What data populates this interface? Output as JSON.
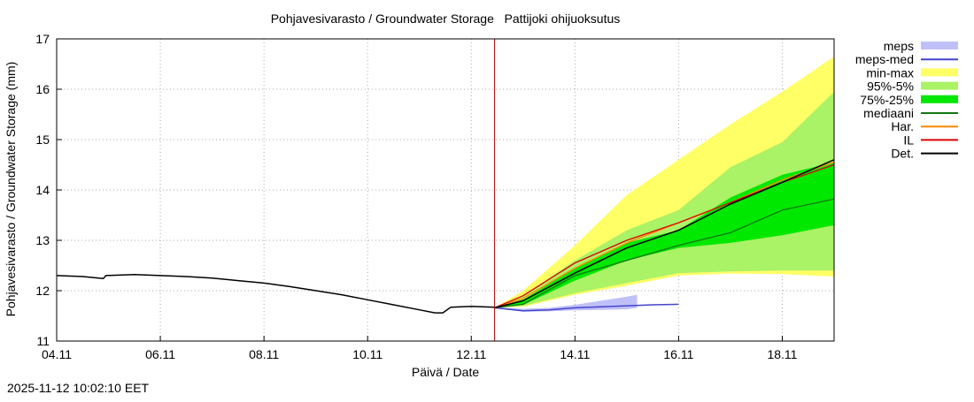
{
  "chart_data": {
    "type": "area",
    "title": "Pohjavesivarasto / Groundwater Storage   Pattijoki ohijuoksutus",
    "xlabel": "Päivä / Date",
    "ylabel": "Pohjavesivarasto / Groundwater Storage (mm)",
    "xlim": [
      0,
      15
    ],
    "ylim": [
      11,
      17
    ],
    "x_unit": "days since 04.11",
    "x_ticks": [
      {
        "x": 0,
        "label": "04.11"
      },
      {
        "x": 2,
        "label": "06.11"
      },
      {
        "x": 4,
        "label": "08.11"
      },
      {
        "x": 6,
        "label": "10.11"
      },
      {
        "x": 8,
        "label": "12.11"
      },
      {
        "x": 10,
        "label": "14.11"
      },
      {
        "x": 12,
        "label": "16.11"
      },
      {
        "x": 14,
        "label": "18.11"
      }
    ],
    "y_ticks": [
      11,
      12,
      13,
      14,
      15,
      16,
      17
    ],
    "grid": true,
    "forecast_start_x": 8.45,
    "legend_position": "right",
    "legend": [
      {
        "label": "meps",
        "color": "#c0c0f8",
        "kind": "band"
      },
      {
        "label": "meps-med",
        "color": "#4444cc",
        "kind": "line"
      },
      {
        "label": "min-max",
        "color": "#ffff66",
        "kind": "band"
      },
      {
        "label": "95%-5%",
        "color": "#aaf266",
        "kind": "band"
      },
      {
        "label": "75%-25%",
        "color": "#00e800",
        "kind": "band"
      },
      {
        "label": "mediaani",
        "color": "#117711",
        "kind": "line"
      },
      {
        "label": "Har.",
        "color": "#ff8800",
        "kind": "line"
      },
      {
        "label": "IL",
        "color": "#dd0000",
        "kind": "line"
      },
      {
        "label": "Det.",
        "color": "#000000",
        "kind": "line"
      }
    ],
    "series": [
      {
        "name": "Det. (observed)",
        "x": [
          0,
          0.5,
          0.9,
          0.95,
          1.5,
          2.0,
          2.5,
          3.0,
          3.5,
          4.0,
          4.5,
          5.0,
          5.5,
          6.0,
          6.5,
          7.0,
          7.3,
          7.45,
          7.6,
          8.0,
          8.45
        ],
        "values": [
          12.3,
          12.28,
          12.24,
          12.3,
          12.32,
          12.3,
          12.28,
          12.25,
          12.2,
          12.15,
          12.08,
          12.0,
          11.92,
          11.82,
          11.72,
          11.62,
          11.56,
          11.56,
          11.67,
          11.69,
          11.67
        ]
      },
      {
        "name": "meps (lower)",
        "x": [
          8.45,
          9,
          9.5,
          10,
          10.5,
          11.0,
          11.2
        ],
        "values": [
          11.65,
          11.58,
          11.59,
          11.61,
          11.62,
          11.63,
          11.66
        ]
      },
      {
        "name": "meps (upper)",
        "x": [
          8.45,
          9,
          9.5,
          10,
          10.5,
          11.0,
          11.2
        ],
        "values": [
          11.67,
          11.64,
          11.66,
          11.72,
          11.8,
          11.88,
          11.92
        ]
      },
      {
        "name": "meps-med",
        "x": [
          8.45,
          9,
          9.5,
          10,
          10.5,
          11,
          11.5,
          12
        ],
        "values": [
          11.66,
          11.6,
          11.62,
          11.66,
          11.68,
          11.7,
          11.72,
          11.73
        ]
      },
      {
        "name": "min",
        "x": [
          8.45,
          9,
          10,
          11,
          12,
          13,
          14,
          15
        ],
        "values": [
          11.66,
          11.68,
          11.92,
          12.1,
          12.3,
          12.34,
          12.33,
          12.28
        ]
      },
      {
        "name": "max",
        "x": [
          8.45,
          9,
          10,
          11,
          12,
          13,
          14,
          15
        ],
        "values": [
          11.66,
          12.0,
          12.9,
          13.9,
          14.6,
          15.3,
          15.95,
          16.65
        ]
      },
      {
        "name": "5%",
        "x": [
          8.45,
          9,
          10,
          11,
          12,
          13,
          14,
          15
        ],
        "values": [
          11.66,
          11.7,
          11.95,
          12.15,
          12.35,
          12.38,
          12.4,
          12.4
        ]
      },
      {
        "name": "95%",
        "x": [
          8.45,
          9,
          10,
          11,
          12,
          13,
          14,
          15
        ],
        "values": [
          11.66,
          11.9,
          12.6,
          13.2,
          13.6,
          14.45,
          14.95,
          15.95
        ]
      },
      {
        "name": "25%",
        "x": [
          8.45,
          9,
          10,
          11,
          12,
          13,
          14,
          15
        ],
        "values": [
          11.66,
          11.72,
          12.2,
          12.6,
          12.85,
          12.95,
          13.1,
          13.3
        ]
      },
      {
        "name": "75%",
        "x": [
          8.45,
          9,
          10,
          11,
          12,
          13,
          14,
          15
        ],
        "values": [
          11.66,
          11.82,
          12.45,
          12.95,
          13.2,
          13.85,
          14.3,
          14.55
        ]
      },
      {
        "name": "mediaani",
        "x": [
          8.45,
          9,
          10,
          11,
          12,
          13,
          14,
          15
        ],
        "values": [
          11.66,
          11.73,
          12.3,
          12.6,
          12.9,
          13.15,
          13.6,
          13.82
        ]
      },
      {
        "name": "Har.",
        "x": [
          8.45,
          9,
          10,
          11,
          12,
          13,
          14,
          15
        ],
        "values": [
          11.66,
          11.85,
          12.45,
          12.95,
          13.35,
          13.75,
          14.2,
          14.55
        ]
      },
      {
        "name": "IL",
        "x": [
          8.45,
          9,
          10,
          11,
          12,
          13,
          14,
          15
        ],
        "values": [
          11.66,
          11.9,
          12.55,
          13.0,
          13.35,
          13.75,
          14.15,
          14.5
        ]
      },
      {
        "name": "Det. (forecast)",
        "x": [
          8.45,
          9,
          10,
          11,
          12,
          13,
          14,
          15
        ],
        "values": [
          11.66,
          11.8,
          12.35,
          12.85,
          13.2,
          13.72,
          14.15,
          14.6
        ]
      }
    ]
  },
  "timestamp": "2025-11-12 10:02:10 EET"
}
